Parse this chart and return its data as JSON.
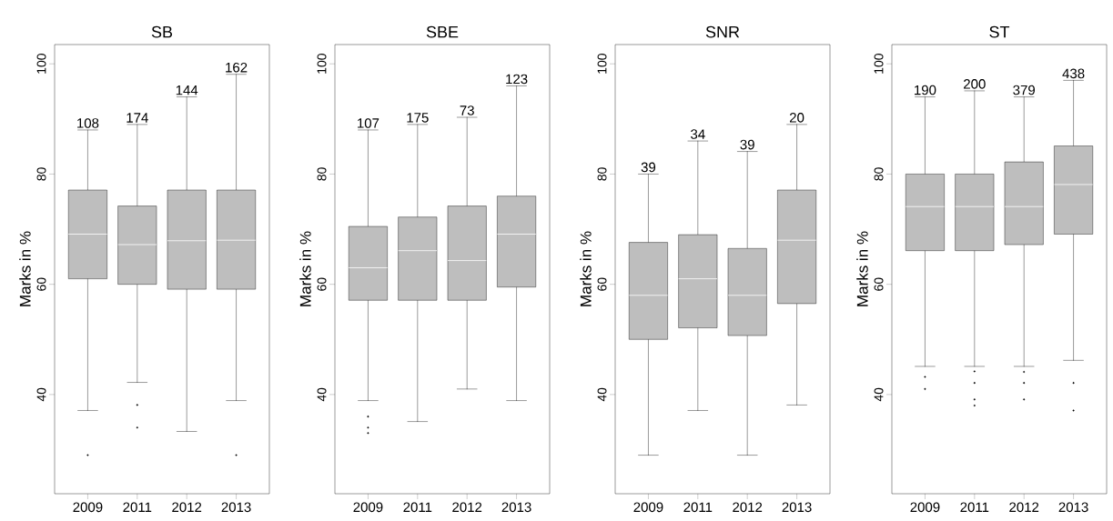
{
  "chart_data": [
    {
      "type": "box",
      "title": "SB",
      "ylabel": "Marks in %",
      "categories": [
        "2009",
        "2011",
        "2012",
        "2013"
      ],
      "color": "#bebebe",
      "ylim": [
        22,
        103.5
      ],
      "yticks": [
        40,
        60,
        80,
        100
      ],
      "boxes": [
        {
          "low": 37.1,
          "q1": 61.0,
          "median": 69.1,
          "q3": 77.1,
          "high": 88,
          "outliers": [
            29
          ]
        },
        {
          "low": 42.2,
          "q1": 60,
          "median": 67.2,
          "q3": 74.2,
          "high": 89,
          "outliers": [
            38.1,
            34
          ]
        },
        {
          "low": 33.3,
          "q1": 59.1,
          "median": 67.9,
          "q3": 77.1,
          "high": 94
        },
        {
          "low": 38.9,
          "q1": 59.1,
          "median": 68.0,
          "q3": 77.1,
          "high": 98.1,
          "outliers": [
            29
          ]
        }
      ],
      "annotations": [
        "108",
        "174",
        "144",
        "162"
      ]
    },
    {
      "type": "box",
      "title": "SBE",
      "ylabel": "Marks in %",
      "categories": [
        "2009",
        "2011",
        "2012",
        "2013"
      ],
      "color": "#bebebe",
      "ylim": [
        22,
        103.5
      ],
      "yticks": [
        40,
        60,
        80,
        100
      ],
      "boxes": [
        {
          "low": 38.9,
          "q1": 57.1,
          "median": 63.0,
          "q3": 70.5,
          "high": 88,
          "outliers": [
            36,
            34,
            33
          ]
        },
        {
          "low": 35.1,
          "q1": 57.1,
          "median": 66.1,
          "q3": 72.2,
          "high": 89
        },
        {
          "low": 41.0,
          "q1": 57.1,
          "median": 64.3,
          "q3": 74.2,
          "high": 90.3
        },
        {
          "low": 38.9,
          "q1": 59.5,
          "median": 69.1,
          "q3": 76.0,
          "high": 96
        }
      ],
      "annotations": [
        "107",
        "175",
        "73",
        "123"
      ]
    },
    {
      "type": "box",
      "title": "SNR",
      "ylabel": "Marks in %",
      "categories": [
        "2009",
        "2011",
        "2012",
        "2013"
      ],
      "color": "#bebebe",
      "ylim": [
        22,
        103.5
      ],
      "yticks": [
        40,
        60,
        80,
        100
      ],
      "boxes": [
        {
          "low": 29,
          "q1": 50.0,
          "median": 58.0,
          "q3": 67.6,
          "high": 80
        },
        {
          "low": 37.1,
          "q1": 52.1,
          "median": 61.0,
          "q3": 69.0,
          "high": 86
        },
        {
          "low": 29,
          "q1": 50.7,
          "median": 58.0,
          "q3": 66.5,
          "high": 84.1
        },
        {
          "low": 38.1,
          "q1": 56.5,
          "median": 68.0,
          "q3": 77.1,
          "high": 89
        }
      ],
      "annotations": [
        "39",
        "34",
        "39",
        "20"
      ]
    },
    {
      "type": "box",
      "title": "ST",
      "ylabel": "Marks in %",
      "categories": [
        "2009",
        "2011",
        "2012",
        "2013"
      ],
      "color": "#bebebe",
      "ylim": [
        22,
        103.5
      ],
      "yticks": [
        40,
        60,
        80,
        100
      ],
      "boxes": [
        {
          "low": 45.1,
          "q1": 66.1,
          "median": 74.1,
          "q3": 80,
          "high": 94,
          "outliers": [
            43.2,
            41
          ]
        },
        {
          "low": 45.1,
          "q1": 66.1,
          "median": 74.1,
          "q3": 80,
          "high": 95.1,
          "outliers": [
            44.2,
            42.1,
            39.1,
            38
          ]
        },
        {
          "low": 45.1,
          "q1": 67.2,
          "median": 74.1,
          "q3": 82.2,
          "high": 94,
          "outliers": [
            44.1,
            42.1,
            39.1
          ]
        },
        {
          "low": 46.2,
          "q1": 69.1,
          "median": 78.1,
          "q3": 85.1,
          "high": 97,
          "outliers": [
            42.1,
            37.1
          ]
        }
      ],
      "annotations": [
        "190",
        "200",
        "379",
        "438"
      ]
    }
  ]
}
